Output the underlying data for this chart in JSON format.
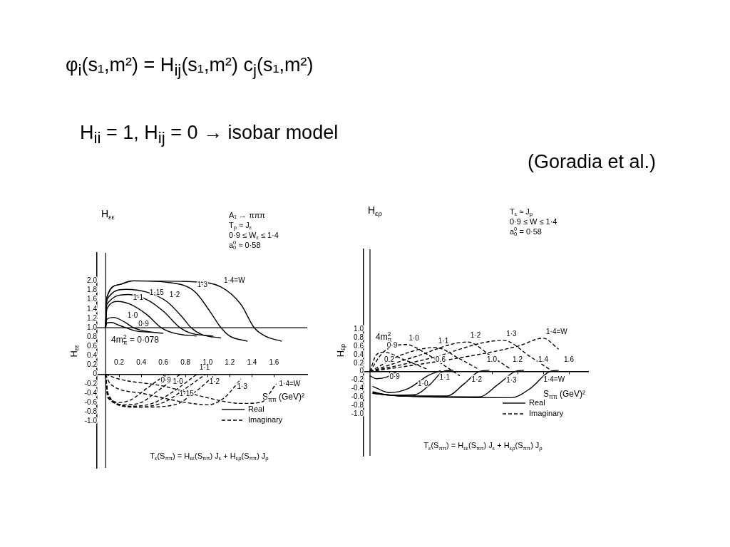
{
  "chart_data": [
    {
      "type": "other",
      "title": "φ$_{i}$(s₁,m²) = H$_{ij}$(s₁,m²) c$_{j}$(s₁,m²)",
      "subtitle": "H$_{ii}$ = 1, H$_{ij}$ = 0 → isobar model",
      "annotations": [
        "(Goradia et al.)"
      ]
    },
    {
      "type": "line",
      "title": "H$_{εε}$",
      "subtitle": "T$_{ε}$(S$_{ππ}$) = H$_{εε}$(S$_{ππ}$) J$_{ε}$ + H$_{ερ}$(S$_{ππ}$) J$_{ρ}$",
      "xlabel": "S$_{ππ}$ (GeV)²",
      "ylabel": "H$_{εε}$",
      "xlim": [
        0,
        1.9
      ],
      "ylim": [
        -2.0,
        2.6
      ],
      "xticks": [
        0.2,
        0.4,
        0.6,
        0.8,
        {
          "value": 1.0,
          "label": "1.0"
        },
        1.2,
        1.4,
        1.6
      ],
      "yticks": [
        {
          "value": 2.0,
          "label": "2.0"
        },
        1.8,
        1.6,
        1.4,
        1.2,
        {
          "value": 1.0,
          "label": "1.0"
        },
        0.8,
        0.6,
        0.4,
        0.2,
        0,
        -0.2,
        -0.4,
        -0.6,
        -0.8,
        {
          "value": -1.0,
          "label": "-1.0"
        }
      ],
      "grid": false,
      "legend": "bottom right",
      "marker": "none",
      "ref_lines": [
        {
          "axis": "y",
          "value": 1.0,
          "color": "#000000"
        },
        {
          "axis": "x",
          "value": 0.078,
          "label": "4m$^{2}$$_{π}$ = 0·078",
          "color": "#000000"
        }
      ],
      "annotations": [
        "A₁ → πππ",
        "T$_{p}$ ≈ J$_{ε}$",
        "0·9 ≤ W$_{ε}$ ≤ 1·4",
        "a$^{0}$$_{0}$ ≈ 0·58",
        {
          "text": "0·9",
          "x": 0.35,
          "y": 0.93
        },
        {
          "text": "1·0",
          "x": 0.25,
          "y": 1.12
        },
        {
          "text": "1·1",
          "x": 0.3,
          "y": 1.5
        },
        {
          "text": "1·15",
          "x": 0.45,
          "y": 1.6
        },
        {
          "text": "1·2",
          "x": 0.63,
          "y": 1.56
        },
        {
          "text": "1·3",
          "x": 0.88,
          "y": 1.78
        },
        {
          "text": "1·4=W",
          "x": 1.12,
          "y": 1.87
        },
        {
          "text": "0·9",
          "x": 0.55,
          "y": -0.13
        },
        {
          "text": "1·0",
          "x": 0.66,
          "y": -0.16
        },
        {
          "text": "1·1",
          "x": 0.9,
          "y": 0
        },
        {
          "text": "1·15",
          "x": 0.72,
          "y": -0.42
        },
        {
          "text": "1·2",
          "x": 0.99,
          "y": -0.16
        },
        {
          "text": "1·3",
          "x": 1.24,
          "y": -0.26
        },
        {
          "text": "1·4=W",
          "x": 1.62,
          "y": -0.2
        }
      ],
      "series": [
        {
          "name": "Real",
          "color": "#000000",
          "line_style": "solid",
          "x": [
            0.078,
            0.09,
            0.13,
            0.2,
            0.26,
            0.35,
            0.5
          ],
          "values": [
            1.0,
            1.1,
            1.11,
            1.05,
            1.0,
            0.93,
            0.9
          ]
        },
        {
          "color": "#000000",
          "line_style": "solid",
          "x": [
            0.078,
            0.09,
            0.15,
            0.25,
            0.33,
            0.45,
            0.6
          ],
          "values": [
            1.0,
            1.18,
            1.22,
            1.12,
            1.0,
            0.92,
            0.88
          ]
        },
        {
          "color": "#000000",
          "line_style": "solid",
          "x": [
            0.078,
            0.09,
            0.19,
            0.3,
            0.45,
            0.58,
            0.7,
            0.9
          ],
          "values": [
            1.0,
            1.4,
            1.56,
            1.5,
            1.28,
            1.0,
            0.88,
            0.82
          ]
        },
        {
          "color": "#000000",
          "line_style": "solid",
          "x": [
            0.078,
            0.09,
            0.28,
            0.45,
            0.6,
            0.75,
            0.85,
            1.05
          ],
          "values": [
            1.0,
            1.5,
            1.71,
            1.6,
            1.35,
            1.0,
            0.88,
            0.82
          ]
        },
        {
          "color": "#000000",
          "line_style": "solid",
          "x": [
            0.078,
            0.09,
            0.26,
            0.45,
            0.63,
            0.78,
            0.85,
            0.95,
            1.12
          ],
          "values": [
            1.0,
            1.6,
            1.82,
            1.76,
            1.56,
            1.2,
            1.0,
            0.85,
            0.78
          ]
        },
        {
          "color": "#000000",
          "line_style": "solid",
          "x": [
            0.078,
            0.09,
            0.2,
            0.31,
            0.63,
            0.88,
            1.02,
            1.12,
            1.2,
            1.36
          ],
          "values": [
            1.0,
            1.65,
            1.92,
            2.0,
            1.97,
            1.78,
            1.35,
            1.0,
            0.82,
            0.71
          ]
        },
        {
          "color": "#000000",
          "line_style": "solid",
          "x": [
            0.078,
            0.09,
            0.2,
            0.33,
            0.88,
            1.12,
            1.3,
            1.42,
            1.52,
            1.67
          ],
          "values": [
            1.0,
            1.65,
            1.92,
            2.0,
            1.98,
            1.87,
            1.5,
            1.0,
            0.82,
            0.71
          ]
        },
        {
          "name": "Imaginary",
          "color": "#000000",
          "line_style": "dashed",
          "x": [
            0.078,
            0.1,
            0.2,
            0.3,
            0.45,
            0.6,
            0.65
          ],
          "values": [
            0,
            -0.4,
            -0.6,
            -0.55,
            -0.3,
            -0.05,
            0
          ]
        },
        {
          "color": "#000000",
          "line_style": "dashed",
          "x": [
            0.078,
            0.1,
            0.25,
            0.4,
            0.55,
            0.75
          ],
          "values": [
            0,
            -0.45,
            -0.65,
            -0.6,
            -0.35,
            0
          ]
        },
        {
          "color": "#000000",
          "line_style": "dashed",
          "x": [
            0.078,
            0.1,
            0.3,
            0.5,
            0.7,
            0.9
          ],
          "values": [
            0,
            -0.5,
            -0.68,
            -0.62,
            -0.35,
            0
          ]
        },
        {
          "color": "#000000",
          "line_style": "dashed",
          "x": [
            0.078,
            0.1,
            0.35,
            0.6,
            0.8,
            0.98
          ],
          "values": [
            0,
            -0.5,
            -0.7,
            -0.6,
            -0.3,
            0
          ]
        },
        {
          "color": "#000000",
          "line_style": "dashed",
          "x": [
            0.078,
            0.1,
            0.4,
            0.7,
            0.9,
            1.07
          ],
          "values": [
            0,
            -0.5,
            -0.7,
            -0.65,
            -0.35,
            0
          ]
        },
        {
          "color": "#000000",
          "line_style": "dashed",
          "x": [
            0.078,
            0.12,
            0.4,
            0.8,
            1.0,
            1.15,
            1.3
          ],
          "values": [
            0,
            -0.2,
            -0.4,
            -0.6,
            -0.65,
            -0.5,
            -0.1
          ]
        },
        {
          "color": "#000000",
          "line_style": "dashed",
          "x": [
            0.078,
            0.2,
            0.6,
            1.0,
            1.3,
            1.48,
            1.62
          ],
          "values": [
            0,
            -0.1,
            -0.25,
            -0.5,
            -0.62,
            -0.6,
            -0.2
          ]
        }
      ]
    },
    {
      "type": "line",
      "title": "H$_{ερ}$",
      "subtitle": "T$_{ε}$(S$_{ππ}$) = H$_{εε}$(S$_{ππ}$) J$_{ε}$ + H$_{ερ}$(S$_{ππ}$) J$_{ρ}$",
      "xlabel": "S$_{ππ}$ (GeV)²",
      "ylabel": "H$_{ερ}$",
      "xlim": [
        0,
        1.75
      ],
      "ylim": [
        -2.0,
        2.9
      ],
      "xticks": [
        0.2,
        0.6,
        {
          "value": 1.0,
          "label": "1.0"
        },
        1.2,
        1.4,
        1.6
      ],
      "yticks": [
        {
          "value": 1.0,
          "label": "1.0"
        },
        0.8,
        0.6,
        0.4,
        0.2,
        0,
        -0.2,
        -0.4,
        -0.6,
        -0.8,
        {
          "value": -1.0,
          "label": "-1.0"
        }
      ],
      "grid": false,
      "legend": "bottom right",
      "marker": "none",
      "ref_lines": [
        {
          "axis": "x",
          "value": 0.05,
          "label": "4m$^{2}$$_{π}$",
          "color": "#000000"
        }
      ],
      "annotations": [
        "T$_{ε}$ ≈ J$_{ρ}$",
        "0·9 ≤ W ≤ 1·4",
        "a$^{0}$$_{0}$ = 0·58",
        {
          "text": "0·9",
          "x": 0.18,
          "y": -0.13
        },
        {
          "text": "1·0",
          "x": 0.4,
          "y": -0.3
        },
        {
          "text": "1·1",
          "x": 0.57,
          "y": -0.15
        },
        {
          "text": "1·2",
          "x": 0.82,
          "y": -0.2
        },
        {
          "text": "1·3",
          "x": 1.09,
          "y": -0.21
        },
        {
          "text": "1·4=W",
          "x": 1.38,
          "y": -0.19
        },
        {
          "text": "0·9",
          "x": 0.16,
          "y": 0.46
        },
        {
          "text": "1·0",
          "x": 0.33,
          "y": 0.64
        },
        {
          "text": "1·1",
          "x": 0.56,
          "y": 0.57
        },
        {
          "text": "1·2",
          "x": 0.81,
          "y": 0.7
        },
        {
          "text": "1·3",
          "x": 1.09,
          "y": 0.74
        },
        {
          "text": "1·4=W",
          "x": 1.4,
          "y": 0.79
        }
      ],
      "series": [
        {
          "name": "Real",
          "color": "#000000",
          "line_style": "solid",
          "x": [
            0.05,
            0.1,
            0.18,
            0.26
          ],
          "values": [
            -0.1,
            -0.17,
            -0.13,
            0
          ]
        },
        {
          "color": "#000000",
          "line_style": "solid",
          "x": [
            0.07,
            0.2,
            0.35,
            0.5,
            0.6
          ],
          "values": [
            -0.35,
            -0.5,
            -0.4,
            -0.1,
            0.02
          ]
        },
        {
          "color": "#000000",
          "line_style": "solid",
          "x": [
            0.07,
            0.2,
            0.4,
            0.52,
            0.62,
            0.7
          ],
          "values": [
            -0.48,
            -0.56,
            -0.55,
            -0.3,
            0,
            0.03
          ]
        },
        {
          "color": "#000000",
          "line_style": "solid",
          "x": [
            0.07,
            0.3,
            0.65,
            0.78,
            0.9,
            0.98
          ],
          "values": [
            -0.5,
            -0.58,
            -0.58,
            -0.3,
            0,
            0.03
          ]
        },
        {
          "color": "#000000",
          "line_style": "solid",
          "x": [
            0.07,
            0.3,
            0.9,
            1.05,
            1.18,
            1.25
          ],
          "values": [
            -0.52,
            -0.58,
            -0.6,
            -0.3,
            0,
            0.03
          ]
        },
        {
          "color": "#000000",
          "line_style": "solid",
          "x": [
            0.07,
            0.3,
            1.15,
            1.3,
            1.45,
            1.52
          ],
          "values": [
            -0.52,
            -0.58,
            -0.62,
            -0.4,
            0,
            0.03
          ]
        },
        {
          "name": "Imaginary",
          "color": "#000000",
          "line_style": "dashed",
          "x": [
            0.05,
            0.1,
            0.16,
            0.3,
            0.5
          ],
          "values": [
            0,
            0.4,
            0.46,
            0.3,
            0.05
          ]
        },
        {
          "color": "#000000",
          "line_style": "dashed",
          "x": [
            0.05,
            0.15,
            0.33,
            0.5,
            0.65,
            0.75
          ],
          "values": [
            0,
            0.45,
            0.64,
            0.4,
            0.1,
            -0.1
          ]
        },
        {
          "color": "#000000",
          "line_style": "dashed",
          "x": [
            0.05,
            0.3,
            0.56,
            0.75,
            0.9
          ],
          "values": [
            0,
            0.4,
            0.57,
            0.3,
            0.05
          ]
        },
        {
          "color": "#000000",
          "line_style": "dashed",
          "x": [
            0.05,
            0.4,
            0.81,
            1.0,
            1.15
          ],
          "values": [
            0,
            0.35,
            0.7,
            0.35,
            0.05
          ]
        },
        {
          "color": "#000000",
          "line_style": "dashed",
          "x": [
            0.05,
            0.5,
            1.09,
            1.3,
            1.45
          ],
          "values": [
            0,
            0.3,
            0.74,
            0.35,
            0.05
          ]
        },
        {
          "color": "#000000",
          "line_style": "dashed",
          "x": [
            0.05,
            0.7,
            1.2,
            1.4,
            1.52
          ],
          "values": [
            0,
            0.3,
            0.6,
            0.79,
            0.53
          ]
        }
      ]
    }
  ]
}
